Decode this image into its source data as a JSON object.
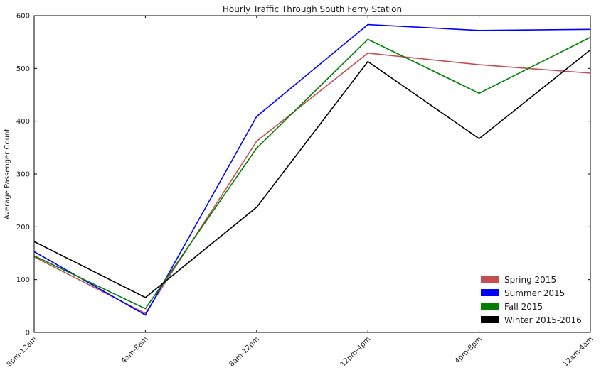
{
  "chart_data": {
    "type": "line",
    "title": "Hourly Traffic Through South Ferry Station",
    "xlabel": "",
    "ylabel": "Average Passenger Count",
    "categories": [
      "8pm-12am",
      "4am-8am",
      "8am-12pm",
      "12pm-4pm",
      "4pm-8pm",
      "12am-4am"
    ],
    "ylim": [
      0,
      600
    ],
    "yticks": [
      "0",
      "100",
      "200",
      "300",
      "400",
      "500",
      "600"
    ],
    "grid": false,
    "legend_position": "lower-right",
    "series": [
      {
        "name": "Spring 2015",
        "color": "#c44e52",
        "values": [
          143,
          36,
          362,
          529,
          507,
          491
        ]
      },
      {
        "name": "Summer 2015",
        "color": "#0000ff",
        "values": [
          153,
          33,
          409,
          583,
          572,
          574
        ]
      },
      {
        "name": "Fall 2015",
        "color": "#008000",
        "values": [
          145,
          45,
          349,
          555,
          453,
          559
        ]
      },
      {
        "name": "Winter 2015-2016",
        "color": "#000000",
        "values": [
          172,
          66,
          237,
          513,
          367,
          535
        ]
      }
    ]
  }
}
